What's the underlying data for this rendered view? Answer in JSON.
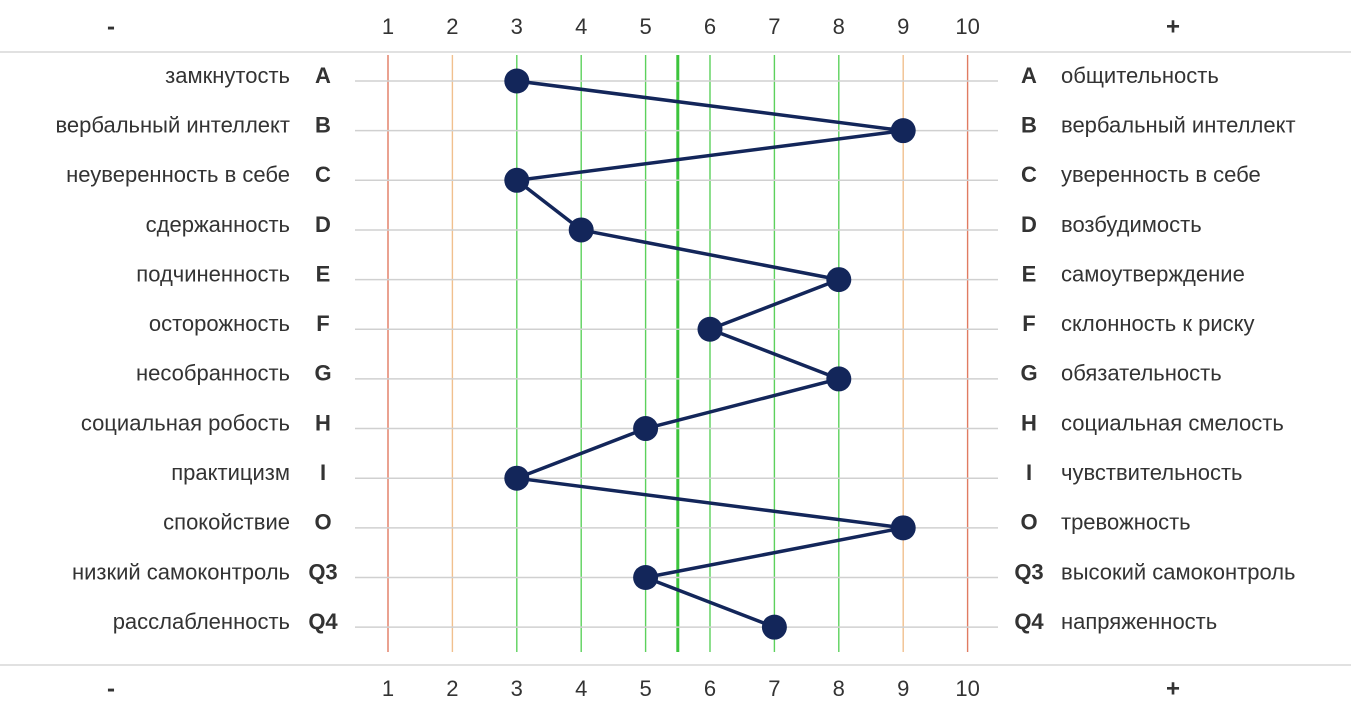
{
  "chart_data": {
    "type": "line",
    "scale_min": "-",
    "scale_max": "+",
    "x_ticks": [
      "1",
      "2",
      "3",
      "4",
      "5",
      "6",
      "7",
      "8",
      "9",
      "10"
    ],
    "xlim": [
      1,
      10
    ],
    "reference_line": 5.5,
    "grid": true,
    "factors": [
      {
        "code": "A",
        "left": "замкнутость",
        "right": "общительность",
        "value": 3
      },
      {
        "code": "B",
        "left": "вербальный интеллект",
        "right": "вербальный интеллект",
        "value": 9
      },
      {
        "code": "C",
        "left": "неуверенность в себе",
        "right": "уверенность в себе",
        "value": 3
      },
      {
        "code": "D",
        "left": "сдержанность",
        "right": "возбудимость",
        "value": 4
      },
      {
        "code": "E",
        "left": "подчиненность",
        "right": "самоутверждение",
        "value": 8
      },
      {
        "code": "F",
        "left": "осторожность",
        "right": "склонность к риску",
        "value": 6
      },
      {
        "code": "G",
        "left": "несобранность",
        "right": "обязательность",
        "value": 8
      },
      {
        "code": "H",
        "left": "социальная робость",
        "right": "социальная смелость",
        "value": 5
      },
      {
        "code": "I",
        "left": "практицизм",
        "right": "чувствительность",
        "value": 3
      },
      {
        "code": "O",
        "left": "спокойствие",
        "right": "тревожность",
        "value": 9
      },
      {
        "code": "Q3",
        "left": "низкий самоконтроль",
        "right": "высокий самоконтроль",
        "value": 5
      },
      {
        "code": "Q4",
        "left": "расслабленность",
        "right": "напряженность",
        "value": 7
      }
    ],
    "colors": {
      "line": "#13265a",
      "marker": "#13265a",
      "row_grid": "#d0d0d0",
      "outer_lines": "#e07b62",
      "mid_lines": "#f1c08e",
      "inner_lines": "#5cd15c",
      "center_line": "#3cc43c",
      "separator": "#cfcfcf",
      "text": "#333333"
    }
  }
}
